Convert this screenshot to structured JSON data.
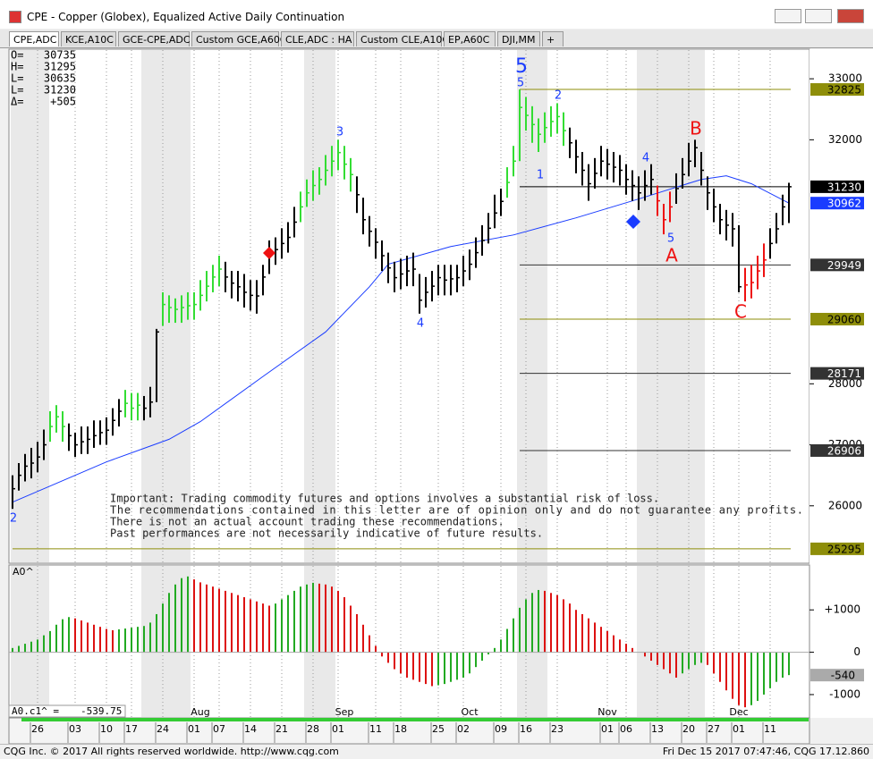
{
  "window": {
    "title": "CPE - Copper (Globex), Equalized Active Daily Continuation",
    "tabs": [
      "CPE,ADC",
      "KCE,A10C",
      "GCE-CPE,ADC",
      "Custom GCE,A60C",
      "CLE,ADC : HA",
      "Custom CLE,A10C",
      "EP,A60C",
      "DJI,MM",
      "+"
    ],
    "status_left": "CQG Inc. © 2017 All rights reserved worldwide. http://www.cqg.com",
    "status_right": "Fri Dec 15 2017 07:47:46, CQG 17.12.860"
  },
  "chart_data": [
    {
      "type": "ohlc",
      "color": "#000000",
      "highlights": [
        {
          "from": 6,
          "to": 8,
          "color": "#33dd33"
        },
        {
          "from": 18,
          "to": 20,
          "color": "#33dd33"
        },
        {
          "from": 24,
          "to": 33,
          "color": "#33dd33"
        },
        {
          "from": 46,
          "to": 54,
          "color": "#33dd33"
        },
        {
          "from": 79,
          "to": 88,
          "color": "#33dd33"
        },
        {
          "from": 103,
          "to": 105,
          "color": "#ee1111"
        },
        {
          "from": 117,
          "to": 120,
          "color": "#ee1111"
        }
      ],
      "high": [
        26500,
        26700,
        26850,
        26950,
        27050,
        27250,
        27550,
        27650,
        27550,
        27350,
        27200,
        27300,
        27300,
        27400,
        27400,
        27450,
        27600,
        27750,
        27900,
        27850,
        27850,
        27800,
        27950,
        28900,
        29500,
        29450,
        29400,
        29450,
        29500,
        29500,
        29700,
        29850,
        29950,
        30100,
        30000,
        29850,
        29850,
        29800,
        29700,
        29700,
        29950,
        30350,
        30400,
        30550,
        30650,
        30900,
        31150,
        31350,
        31500,
        31550,
        31750,
        31900,
        32000,
        31900,
        31700,
        31400,
        31050,
        30750,
        30550,
        30350,
        30150,
        30000,
        30050,
        30100,
        30150,
        29800,
        29750,
        29850,
        29950,
        29950,
        29950,
        29950,
        30100,
        30200,
        30400,
        30600,
        30800,
        31100,
        31200,
        31550,
        31900,
        32825,
        32700,
        32550,
        32350,
        32450,
        32550,
        32600,
        32450,
        32200,
        32000,
        31800,
        31600,
        31700,
        31900,
        31850,
        31800,
        31750,
        31600,
        31500,
        31400,
        31500,
        31600,
        31250,
        30950,
        31150,
        31450,
        31700,
        31950,
        32000,
        31800,
        31400,
        31200,
        30950,
        30850,
        30800,
        30600,
        29900,
        29950,
        30100,
        30300,
        30550,
        30800,
        31100,
        31295
      ],
      "low": [
        25950,
        26250,
        26400,
        26450,
        26550,
        26750,
        27050,
        27200,
        27050,
        26900,
        26800,
        26850,
        26850,
        26950,
        27000,
        27000,
        27150,
        27300,
        27450,
        27400,
        27400,
        27400,
        27450,
        27700,
        28950,
        29000,
        29000,
        29000,
        29050,
        29050,
        29200,
        29350,
        29500,
        29600,
        29500,
        29400,
        29350,
        29250,
        29200,
        29150,
        29450,
        29800,
        29950,
        30050,
        30150,
        30400,
        30650,
        30900,
        31000,
        31100,
        31250,
        31400,
        31500,
        31350,
        31150,
        30800,
        30450,
        30250,
        30050,
        29850,
        29650,
        29500,
        29550,
        29600,
        29600,
        29150,
        29250,
        29350,
        29450,
        29450,
        29450,
        29500,
        29600,
        29700,
        29900,
        30100,
        30300,
        30550,
        30750,
        31050,
        31400,
        31650,
        32150,
        31950,
        31800,
        31950,
        32050,
        32100,
        31900,
        31700,
        31450,
        31250,
        31000,
        31200,
        31400,
        31350,
        31300,
        31250,
        31100,
        31000,
        30850,
        31000,
        31100,
        30750,
        30450,
        30650,
        30950,
        31200,
        31400,
        31550,
        31250,
        30850,
        30650,
        30450,
        30350,
        30250,
        29500,
        29350,
        29400,
        29550,
        29750,
        30050,
        30300,
        30600,
        30635
      ],
      "close": [
        26280,
        26500,
        26650,
        26700,
        26800,
        27000,
        27300,
        27460,
        27300,
        27150,
        27000,
        27050,
        27090,
        27150,
        27200,
        27240,
        27400,
        27550,
        27680,
        27600,
        27650,
        27600,
        27700,
        28850,
        29300,
        29250,
        29220,
        29250,
        29280,
        29300,
        29450,
        29600,
        29750,
        29880,
        29750,
        29650,
        29590,
        29500,
        29450,
        29440,
        29750,
        30100,
        30200,
        30300,
        30400,
        30650,
        30900,
        31130,
        31250,
        31350,
        31500,
        31650,
        31790,
        31600,
        31430,
        31100,
        30690,
        30500,
        30320,
        30100,
        29900,
        29740,
        29800,
        29850,
        29880,
        29370,
        29500,
        29600,
        29740,
        29700,
        29720,
        29740,
        29850,
        29960,
        30150,
        30350,
        30550,
        30800,
        30990,
        31300,
        31650,
        32530,
        32400,
        32250,
        32090,
        32200,
        32300,
        32380,
        32150,
        31950,
        31720,
        31500,
        31280,
        31450,
        31650,
        31600,
        31550,
        31500,
        31350,
        31250,
        31130,
        31250,
        31350,
        31000,
        30690,
        30900,
        31200,
        31430,
        31650,
        31870,
        31500,
        31130,
        30900,
        30690,
        30600,
        30540,
        29590,
        29620,
        29660,
        29850,
        30030,
        30300,
        30540,
        30900,
        31230
      ],
      "ma": {
        "color": "#1a3cff",
        "x": [
          0,
          15,
          25,
          30,
          40,
          50,
          57,
          60,
          70,
          80,
          90,
          100,
          110,
          114,
          118,
          124
        ],
        "values": [
          26060,
          26720,
          27090,
          27380,
          28120,
          28850,
          29590,
          29960,
          30250,
          30440,
          30720,
          31030,
          31350,
          31410,
          31280,
          30962
        ]
      },
      "ylim": [
        25059,
        33456
      ],
      "yticks": [
        26000,
        27000,
        28000,
        32000,
        33000
      ],
      "levels": [
        {
          "value": 32825,
          "color": "#8e8e0a",
          "text_color": "#000000"
        },
        {
          "value": 31230,
          "color": "#000000",
          "text_color": "#ffffff"
        },
        {
          "value": 30962,
          "color": "#1a3cff",
          "text_color": "#ffffff"
        },
        {
          "value": 29949,
          "color": "#333333",
          "text_color": "#ffffff"
        },
        {
          "value": 29060,
          "color": "#8e8e0a",
          "text_color": "#000000"
        },
        {
          "value": 28171,
          "color": "#333333",
          "text_color": "#ffffff"
        },
        {
          "value": 26906,
          "color": "#333333",
          "text_color": "#ffffff"
        },
        {
          "value": 25295,
          "color": "#8e8e0a",
          "text_color": "#000000"
        }
      ],
      "readout": [
        {
          "label": "O=",
          "value": "30735"
        },
        {
          "label": "H=",
          "value": "31295"
        },
        {
          "label": "L=",
          "value": "30635"
        },
        {
          "label": "L=",
          "value": "31230"
        },
        {
          "label": "Δ=",
          "value": "+505"
        }
      ],
      "annotations": [
        {
          "text": "5",
          "color": "#1a3cff"
        },
        {
          "text": "2",
          "color": "#1a3cff"
        },
        {
          "text": "3",
          "color": "#1a3cff"
        },
        {
          "text": "5",
          "color": "#1a3cff"
        },
        {
          "text": "2",
          "color": "#1a3cff"
        },
        {
          "text": "1",
          "color": "#1a3cff"
        },
        {
          "text": "4",
          "color": "#1a3cff"
        },
        {
          "text": "4",
          "color": "#1a3cff"
        },
        {
          "text": "5",
          "color": "#1a3cff"
        },
        {
          "text": "A",
          "color": "#ee1111"
        },
        {
          "text": "B",
          "color": "#ee1111"
        },
        {
          "text": "C",
          "color": "#ee1111"
        }
      ],
      "disclaimer": [
        "Important: Trading commodity futures and options involves a substantial risk of loss.",
        "The recommendations contained in this letter are of opinion only and do not guarantee any profits.",
        "There is not an actual account trading these recommendations.",
        "Past performances are not necessarily indicative of future results."
      ],
      "days": {
        "x": [
          4,
          10,
          15,
          19,
          24,
          29,
          33,
          38,
          43,
          48,
          52,
          58,
          62,
          68,
          72,
          78,
          82,
          87,
          95,
          98,
          103,
          108,
          112,
          116,
          121
        ],
        "labels": [
          "26",
          "03",
          "10",
          "17",
          "24",
          "01",
          "07",
          "14",
          "21",
          "28",
          "01",
          "11",
          "18",
          "25",
          "02",
          "09",
          "16",
          "23",
          "01",
          "06",
          "13",
          "20",
          "27",
          "01",
          "11"
        ]
      },
      "months": {
        "x": [
          30,
          53,
          73,
          95,
          116
        ],
        "labels": [
          "Aug",
          "Sep",
          "Oct",
          "Nov",
          "Dec"
        ]
      }
    },
    {
      "type": "bar",
      "title": "A0^",
      "value_title": "A0.c1^ =",
      "up_color": "#22aa22",
      "down_color": "#dd1111",
      "values": [
        100,
        150,
        200,
        250,
        300,
        400,
        500,
        650,
        780,
        830,
        800,
        750,
        700,
        650,
        600,
        550,
        520,
        540,
        560,
        580,
        600,
        620,
        700,
        900,
        1150,
        1400,
        1600,
        1750,
        1790,
        1720,
        1650,
        1600,
        1550,
        1500,
        1450,
        1400,
        1350,
        1300,
        1250,
        1200,
        1150,
        1100,
        1150,
        1250,
        1350,
        1450,
        1550,
        1600,
        1640,
        1620,
        1600,
        1550,
        1450,
        1300,
        1100,
        900,
        650,
        400,
        150,
        -100,
        -250,
        -400,
        -500,
        -600,
        -650,
        -700,
        -750,
        -800,
        -780,
        -750,
        -700,
        -650,
        -600,
        -500,
        -350,
        -200,
        -50,
        100,
        300,
        550,
        800,
        1050,
        1250,
        1400,
        1470,
        1450,
        1400,
        1350,
        1250,
        1150,
        1000,
        900,
        800,
        700,
        600,
        500,
        400,
        300,
        200,
        100,
        0,
        -100,
        -200,
        -300,
        -400,
        -500,
        -600,
        -500,
        -400,
        -300,
        -250,
        -300,
        -500,
        -700,
        -900,
        -1100,
        -1250,
        -1300,
        -1250,
        -1150,
        -1000,
        -850,
        -700,
        -600,
        -539.75
      ],
      "current_label": "-540",
      "ylim": [
        -1550,
        2060
      ],
      "yticks": [
        {
          "value": 1000,
          "label": "+1000"
        },
        0,
        -1000
      ]
    }
  ]
}
